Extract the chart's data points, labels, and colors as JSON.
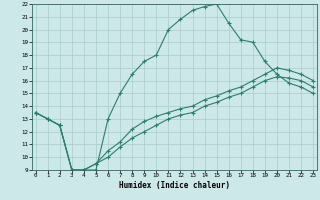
{
  "title": "",
  "xlabel": "Humidex (Indice chaleur)",
  "bg_color": "#cce8e8",
  "grid_color": "#aacccc",
  "line_color": "#2e7d6e",
  "xlim": [
    0,
    23
  ],
  "ylim": [
    9,
    22
  ],
  "xticks": [
    0,
    1,
    2,
    3,
    4,
    5,
    6,
    7,
    8,
    9,
    10,
    11,
    12,
    13,
    14,
    15,
    16,
    17,
    18,
    19,
    20,
    21,
    22,
    23
  ],
  "yticks": [
    9,
    10,
    11,
    12,
    13,
    14,
    15,
    16,
    17,
    18,
    19,
    20,
    21,
    22
  ],
  "line1_x": [
    0,
    1,
    2,
    3,
    4,
    5,
    6,
    7,
    8,
    9,
    10,
    11,
    12,
    13,
    14,
    15,
    16,
    17,
    18,
    19,
    20,
    21,
    22,
    23
  ],
  "line1_y": [
    13.5,
    13.0,
    12.5,
    9.0,
    9.0,
    9.0,
    13.0,
    15.0,
    16.5,
    17.5,
    18.0,
    20.0,
    20.8,
    21.5,
    21.8,
    22.0,
    20.5,
    19.2,
    19.0,
    17.5,
    16.5,
    15.8,
    15.5,
    15.0
  ],
  "line2_x": [
    0,
    1,
    2,
    3,
    4,
    5,
    6,
    7,
    8,
    9,
    10,
    11,
    12,
    13,
    14,
    15,
    16,
    17,
    18,
    19,
    20,
    21,
    22,
    23
  ],
  "line2_y": [
    13.5,
    13.0,
    12.5,
    9.0,
    9.0,
    9.5,
    10.5,
    11.2,
    12.2,
    12.8,
    13.2,
    13.5,
    13.8,
    14.0,
    14.5,
    14.8,
    15.2,
    15.5,
    16.0,
    16.5,
    17.0,
    16.8,
    16.5,
    16.0
  ],
  "line3_x": [
    0,
    1,
    2,
    3,
    4,
    5,
    6,
    7,
    8,
    9,
    10,
    11,
    12,
    13,
    14,
    15,
    16,
    17,
    18,
    19,
    20,
    21,
    22,
    23
  ],
  "line3_y": [
    13.5,
    13.0,
    12.5,
    9.0,
    9.0,
    9.5,
    10.0,
    10.8,
    11.5,
    12.0,
    12.5,
    13.0,
    13.3,
    13.5,
    14.0,
    14.3,
    14.7,
    15.0,
    15.5,
    16.0,
    16.3,
    16.2,
    16.0,
    15.5
  ]
}
